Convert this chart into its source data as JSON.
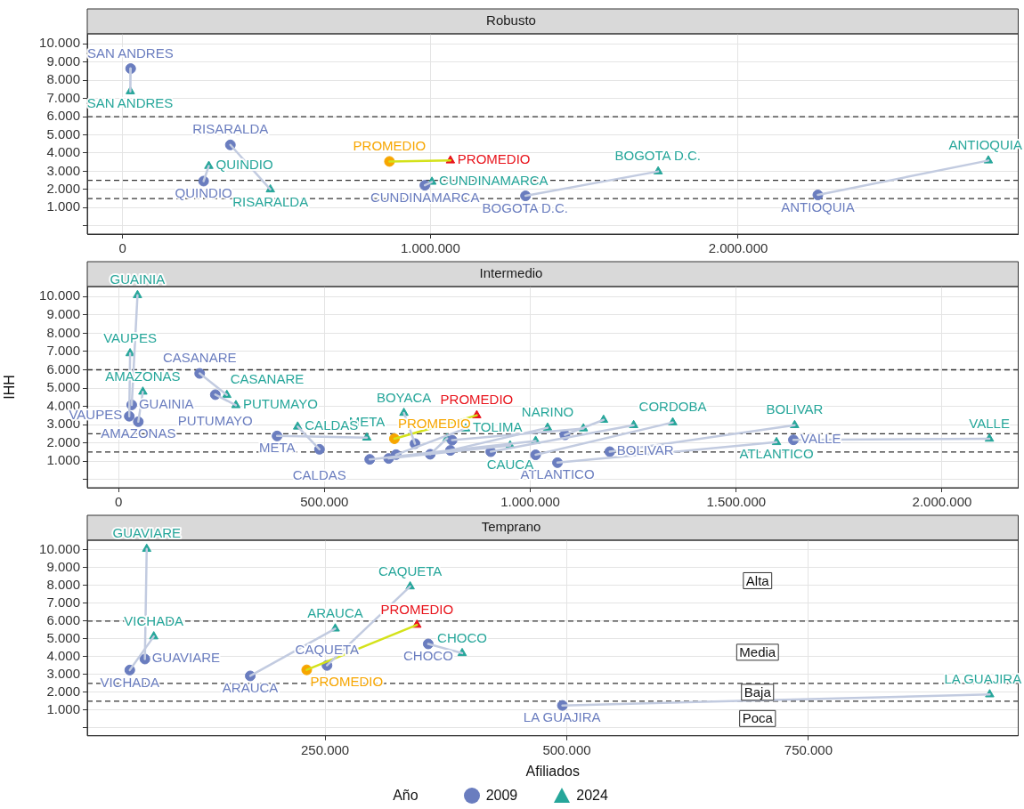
{
  "chart_data": [
    {
      "type": "scatter",
      "title": "Robusto",
      "xlim": [
        -115000,
        2910000
      ],
      "xticks": [
        0,
        {
          "value": 1000000,
          "label": "1.000.000"
        },
        {
          "value": 2000000,
          "label": "2.000.000"
        }
      ],
      "ylim": [
        -450,
        10550
      ],
      "yticks": [
        {
          "value": 0,
          "label": null
        },
        {
          "value": 1000,
          "label": "1.000"
        },
        {
          "value": 2000,
          "label": "2.000"
        },
        {
          "value": 3000,
          "label": "3.000"
        },
        {
          "value": 4000,
          "label": "4.000"
        },
        {
          "value": 5000,
          "label": "5.000"
        },
        {
          "value": 6000,
          "label": "6.000"
        },
        {
          "value": 7000,
          "label": "7.000"
        },
        {
          "value": 8000,
          "label": "8.000"
        },
        {
          "value": 9000,
          "label": "9.000"
        },
        {
          "value": 10000,
          "label": "10.000"
        }
      ],
      "grid": true,
      "ref_lines": [
        {
          "axis": "y",
          "value": 1500,
          "color": "#333333",
          "line_style": "dashed"
        },
        {
          "axis": "y",
          "value": 2500,
          "color": "#333333",
          "line_style": "dashed"
        },
        {
          "axis": "y",
          "value": 6000,
          "color": "#333333",
          "line_style": "dashed"
        }
      ],
      "series": [
        {
          "type": "line",
          "color": "#c2cbe0",
          "marker": "none",
          "x": [
            26000,
            25000
          ],
          "values": [
            8640,
            7390
          ]
        },
        {
          "type": "line",
          "color": "#c2cbe0",
          "marker": "none",
          "x": [
            263000,
            280000
          ],
          "values": [
            2460,
            3290
          ]
        },
        {
          "type": "line",
          "color": "#c2cbe0",
          "marker": "none",
          "x": [
            350000,
            480000
          ],
          "values": [
            4450,
            2000
          ]
        },
        {
          "type": "line",
          "color": "#c2cbe0",
          "marker": "none",
          "x": [
            982000,
            1005000
          ],
          "values": [
            2230,
            2420
          ]
        },
        {
          "type": "line",
          "color": "#c2cbe0",
          "marker": "none",
          "x": [
            1309000,
            1740000
          ],
          "values": [
            1650,
            2990
          ]
        },
        {
          "type": "line",
          "color": "#c2cbe0",
          "marker": "none",
          "x": [
            2259000,
            2813000
          ],
          "values": [
            1700,
            3590
          ]
        },
        {
          "type": "line",
          "color": "#d4e21a",
          "marker": "none",
          "x": [
            867000,
            1065000
          ],
          "values": [
            3540,
            3590
          ]
        },
        {
          "color": "#6a7dbf",
          "marker": "circle",
          "x": [
            26000,
            263000,
            350000,
            982000,
            1309000,
            2259000
          ],
          "values": [
            8640,
            2460,
            4450,
            2230,
            1650,
            1700
          ],
          "value_labels": [
            "SAN ANDRES",
            "QUINDIO",
            "RISARALDA",
            "CUNDINAMARCA",
            "BOGOTA D.C.",
            "ANTIOQUIA"
          ]
        },
        {
          "color": "#26a69a",
          "marker": "triangle",
          "x": [
            25000,
            280000,
            480000,
            1005000,
            1740000,
            2813000
          ],
          "values": [
            7390,
            3290,
            2000,
            2420,
            2990,
            3590
          ],
          "value_labels": [
            "SAN ANDRES",
            "QUINDIO",
            "RISARALDA",
            "CUNDINAMARCA",
            "BOGOTA D.C.",
            "ANTIOQUIA"
          ]
        },
        {
          "color": "#f7a600",
          "marker": "circle",
          "x": [
            867000
          ],
          "values": [
            3540
          ],
          "value_labels": [
            "PROMEDIO"
          ]
        },
        {
          "color": "#e8141c",
          "marker": "triangle",
          "x": [
            1065000
          ],
          "values": [
            3590
          ],
          "value_labels": [
            "PROMEDIO"
          ]
        }
      ]
    },
    {
      "type": "scatter",
      "title": "Intermedio",
      "ylabel": "IHH",
      "xlim": [
        -76000,
        2185000
      ],
      "xticks": [
        0,
        {
          "value": 500000,
          "label": "500.000"
        },
        {
          "value": 1000000,
          "label": "1.000.000"
        },
        {
          "value": 1500000,
          "label": "1.500.000"
        },
        {
          "value": 2000000,
          "label": "2.000.000"
        }
      ],
      "ylim": [
        -450,
        10550
      ],
      "yticks": [
        {
          "value": 0,
          "label": null
        },
        {
          "value": 1000,
          "label": "1.000"
        },
        {
          "value": 2000,
          "label": "2.000"
        },
        {
          "value": 3000,
          "label": "3.000"
        },
        {
          "value": 4000,
          "label": "4.000"
        },
        {
          "value": 5000,
          "label": "5.000"
        },
        {
          "value": 6000,
          "label": "6.000"
        },
        {
          "value": 7000,
          "label": "7.000"
        },
        {
          "value": 8000,
          "label": "8.000"
        },
        {
          "value": 9000,
          "label": "9.000"
        },
        {
          "value": 10000,
          "label": "10.000"
        }
      ],
      "grid": true,
      "ref_lines": [
        {
          "axis": "y",
          "value": 1500,
          "color": "#333333",
          "line_style": "dashed"
        },
        {
          "axis": "y",
          "value": 2500,
          "color": "#333333",
          "line_style": "dashed"
        },
        {
          "axis": "y",
          "value": 6000,
          "color": "#333333",
          "line_style": "dashed"
        }
      ],
      "series": [
        {
          "type": "line",
          "color": "#c2cbe0",
          "marker": "none",
          "x": [
            32000,
            46000
          ],
          "values": [
            4080,
            10080
          ]
        },
        {
          "type": "line",
          "color": "#c2cbe0",
          "marker": "none",
          "x": [
            26000,
            28000
          ],
          "values": [
            3460,
            6900
          ]
        },
        {
          "type": "line",
          "color": "#c2cbe0",
          "marker": "none",
          "x": [
            48000,
            59000
          ],
          "values": [
            3160,
            4800
          ]
        },
        {
          "type": "line",
          "color": "#c2cbe0",
          "marker": "none",
          "x": [
            197000,
            263000
          ],
          "values": [
            5800,
            4620
          ]
        },
        {
          "type": "line",
          "color": "#c2cbe0",
          "marker": "none",
          "x": [
            235000,
            285000
          ],
          "values": [
            4640,
            4060
          ]
        },
        {
          "type": "line",
          "color": "#c2cbe0",
          "marker": "none",
          "x": [
            385000,
            603000
          ],
          "values": [
            2380,
            2290
          ]
        },
        {
          "type": "line",
          "color": "#c2cbe0",
          "marker": "none",
          "x": [
            488000,
            435000
          ],
          "values": [
            1650,
            2890
          ]
        },
        {
          "type": "line",
          "color": "#c2cbe0",
          "marker": "none",
          "x": [
            720000,
            693000
          ],
          "values": [
            1960,
            3640
          ]
        },
        {
          "type": "line",
          "color": "#c2cbe0",
          "marker": "none",
          "x": [
            674000,
            843000
          ],
          "values": [
            1360,
            2790
          ]
        },
        {
          "type": "line",
          "color": "#c2cbe0",
          "marker": "none",
          "x": [
            656000,
            951000
          ],
          "values": [
            1150,
            1860
          ]
        },
        {
          "type": "line",
          "color": "#c2cbe0",
          "marker": "none",
          "x": [
            806000,
            1042000
          ],
          "values": [
            1590,
            2830
          ]
        },
        {
          "type": "line",
          "color": "#c2cbe0",
          "marker": "none",
          "x": [
            1013000,
            1346000
          ],
          "values": [
            1350,
            3120
          ]
        },
        {
          "type": "line",
          "color": "#c2cbe0",
          "marker": "none",
          "x": [
            1066000,
            1598000
          ],
          "values": [
            920,
            2040
          ]
        },
        {
          "type": "line",
          "color": "#c2cbe0",
          "marker": "none",
          "x": [
            1193000,
            1642000
          ],
          "values": [
            1520,
            2970
          ]
        },
        {
          "type": "line",
          "color": "#c2cbe0",
          "marker": "none",
          "x": [
            1639000,
            2115000
          ],
          "values": [
            2170,
            2230
          ]
        },
        {
          "type": "line",
          "color": "#c2cbe0",
          "marker": "none",
          "x": [
            610000,
            1013000
          ],
          "values": [
            1100,
            2110
          ]
        },
        {
          "type": "line",
          "color": "#c2cbe0",
          "marker": "none",
          "x": [
            757000,
            798000
          ],
          "values": [
            1380,
            2250
          ]
        },
        {
          "type": "line",
          "color": "#c2cbe0",
          "marker": "none",
          "x": [
            810000,
            1129000
          ],
          "values": [
            2150,
            2790
          ]
        },
        {
          "type": "line",
          "color": "#c2cbe0",
          "marker": "none",
          "x": [
            1084000,
            1178000
          ],
          "values": [
            2440,
            3260
          ]
        },
        {
          "type": "line",
          "color": "#c2cbe0",
          "marker": "none",
          "x": [
            904000,
            1251000
          ],
          "values": [
            1520,
            2970
          ]
        },
        {
          "type": "line",
          "color": "#d4e21a",
          "marker": "none",
          "x": [
            670000,
            870000
          ],
          "values": [
            2230,
            3510
          ]
        },
        {
          "color": "#6a7dbf",
          "marker": "circle",
          "x": [
            32000,
            26000,
            48000,
            197000,
            235000,
            385000,
            488000,
            720000,
            674000,
            656000,
            806000,
            1013000,
            1066000,
            1193000,
            1639000,
            610000,
            757000,
            810000,
            1084000,
            904000
          ],
          "values": [
            4080,
            3460,
            3160,
            5800,
            4640,
            2380,
            1650,
            1960,
            1360,
            1150,
            1590,
            1350,
            920,
            1520,
            2170,
            1100,
            1380,
            2150,
            2440,
            1520
          ],
          "value_labels": [
            "GUAINIA",
            "VAUPES",
            "AMAZONAS",
            "CASANARE",
            "PUTUMAYO",
            "META",
            "CALDAS",
            null,
            null,
            null,
            null,
            null,
            "ATLANTICO",
            "BOLIVAR",
            "VALLE",
            null,
            null,
            null,
            null,
            null
          ]
        },
        {
          "color": "#26a69a",
          "marker": "triangle",
          "x": [
            46000,
            28000,
            59000,
            263000,
            285000,
            603000,
            435000,
            693000,
            843000,
            951000,
            1042000,
            1346000,
            1598000,
            1642000,
            2115000,
            1013000,
            798000,
            1129000,
            1178000,
            1251000
          ],
          "values": [
            10080,
            6900,
            4800,
            4620,
            4060,
            2290,
            2890,
            3640,
            2790,
            1860,
            2830,
            3120,
            2040,
            2970,
            2230,
            2110,
            2250,
            2790,
            3260,
            2970
          ],
          "value_labels": [
            "GUAINIA",
            "VAUPES",
            "AMAZONAS",
            "CASANARE",
            "PUTUMAYO",
            "META",
            "CALDAS",
            "BOYACA",
            "TOLIMA",
            "CAUCA",
            "NARINO",
            "CORDOBA",
            "ATLANTICO",
            "BOLIVAR",
            "VALLE",
            null,
            null,
            null,
            null,
            null
          ]
        },
        {
          "color": "#f7a600",
          "marker": "circle",
          "x": [
            670000
          ],
          "values": [
            2230
          ],
          "value_labels": [
            "PROMEDIO"
          ]
        },
        {
          "color": "#e8141c",
          "marker": "triangle",
          "x": [
            870000
          ],
          "values": [
            3510
          ],
          "value_labels": [
            "PROMEDIO"
          ]
        }
      ]
    },
    {
      "type": "scatter",
      "title": "Temprano",
      "xlabel": "Afiliados",
      "legend": "bottom",
      "legend_title": "Año",
      "xlim": [
        4000,
        967000
      ],
      "xticks": [
        {
          "value": 250000,
          "label": "250.000"
        },
        {
          "value": 500000,
          "label": "500.000"
        },
        {
          "value": 750000,
          "label": "750.000"
        }
      ],
      "ylim": [
        -450,
        10550
      ],
      "yticks": [
        {
          "value": 0,
          "label": null
        },
        {
          "value": 1000,
          "label": "1.000"
        },
        {
          "value": 2000,
          "label": "2.000"
        },
        {
          "value": 3000,
          "label": "3.000"
        },
        {
          "value": 4000,
          "label": "4.000"
        },
        {
          "value": 5000,
          "label": "5.000"
        },
        {
          "value": 6000,
          "label": "6.000"
        },
        {
          "value": 7000,
          "label": "7.000"
        },
        {
          "value": 8000,
          "label": "8.000"
        },
        {
          "value": 9000,
          "label": "9.000"
        },
        {
          "value": 10000,
          "label": "10.000"
        }
      ],
      "grid": true,
      "ref_lines": [
        {
          "axis": "y",
          "value": 1500,
          "color": "#333333",
          "line_style": "dashed"
        },
        {
          "axis": "y",
          "value": 2500,
          "color": "#333333",
          "line_style": "dashed"
        },
        {
          "axis": "y",
          "value": 6000,
          "color": "#333333",
          "line_style": "dashed"
        }
      ],
      "annotations": [
        "Alta",
        "Media",
        "Baja",
        "Poca"
      ],
      "series": [
        {
          "type": "line",
          "color": "#c2cbe0",
          "marker": "none",
          "x": [
            63600,
            65500
          ],
          "values": [
            3870,
            10060
          ]
        },
        {
          "type": "line",
          "color": "#c2cbe0",
          "marker": "none",
          "x": [
            48000,
            72800
          ],
          "values": [
            3250,
            5140
          ]
        },
        {
          "type": "line",
          "color": "#c2cbe0",
          "marker": "none",
          "x": [
            172600,
            260500
          ],
          "values": [
            2920,
            5580
          ]
        },
        {
          "type": "line",
          "color": "#c2cbe0",
          "marker": "none",
          "x": [
            252000,
            338000
          ],
          "values": [
            3510,
            7950
          ]
        },
        {
          "type": "line",
          "color": "#c2cbe0",
          "marker": "none",
          "x": [
            356700,
            391800
          ],
          "values": [
            4720,
            4200
          ]
        },
        {
          "type": "line",
          "color": "#c2cbe0",
          "marker": "none",
          "x": [
            495500,
            937500
          ],
          "values": [
            1260,
            1880
          ]
        },
        {
          "type": "line",
          "color": "#d4e21a",
          "marker": "none",
          "x": [
            231000,
            345000
          ],
          "values": [
            3260,
            5790
          ]
        },
        {
          "name": "2009",
          "color": "#6a7dbf",
          "marker": "circle",
          "x": [
            63600,
            48000,
            172600,
            252000,
            356700,
            495500
          ],
          "values": [
            3870,
            3250,
            2920,
            3510,
            4720,
            1260
          ],
          "value_labels": [
            "GUAVIARE",
            "VICHADA",
            "ARAUCA",
            "CAQUETA",
            "CHOCO",
            "LA GUAJIRA"
          ]
        },
        {
          "name": "2024",
          "color": "#26a69a",
          "marker": "triangle",
          "x": [
            65500,
            72800,
            260500,
            338000,
            391800,
            937500
          ],
          "values": [
            10060,
            5140,
            5580,
            7950,
            4200,
            1880
          ],
          "value_labels": [
            "GUAVIARE",
            "VICHADA",
            "ARAUCA",
            "CAQUETA",
            "CHOCO",
            "LA GUAJIRA"
          ]
        },
        {
          "color": "#f7a600",
          "marker": "circle",
          "x": [
            231000
          ],
          "values": [
            3260
          ],
          "value_labels": [
            "PROMEDIO"
          ]
        },
        {
          "color": "#e8141c",
          "marker": "triangle",
          "x": [
            345000
          ],
          "values": [
            5790
          ],
          "value_labels": [
            "PROMEDIO"
          ]
        }
      ]
    }
  ]
}
